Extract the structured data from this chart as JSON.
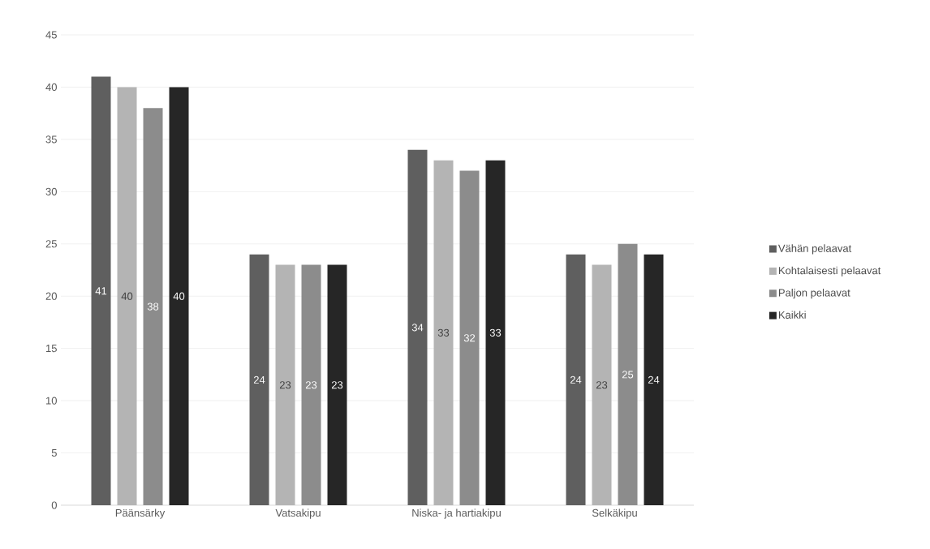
{
  "chart_data": {
    "type": "bar",
    "categories": [
      "Päänsärky",
      "Vatsakipu",
      "Niska- ja hartiakipu",
      "Selkäkipu"
    ],
    "series": [
      {
        "name": "Vähän pelaavat",
        "color": "#5f5f5f",
        "values": [
          41,
          24,
          34,
          24
        ]
      },
      {
        "name": "Kohtalaisesti pelaavat",
        "color": "#b4b4b4",
        "values": [
          40,
          23,
          33,
          23
        ]
      },
      {
        "name": "Paljon pelaavat",
        "color": "#8c8c8c",
        "values": [
          38,
          23,
          32,
          25
        ]
      },
      {
        "name": "Kaikki",
        "color": "#262626",
        "values": [
          40,
          23,
          33,
          24
        ]
      }
    ],
    "ylim": [
      0,
      45
    ],
    "yticks": [
      0,
      5,
      10,
      15,
      20,
      25,
      30,
      35,
      40,
      45
    ],
    "grid": "y",
    "legend": "right",
    "data_labels": true
  }
}
